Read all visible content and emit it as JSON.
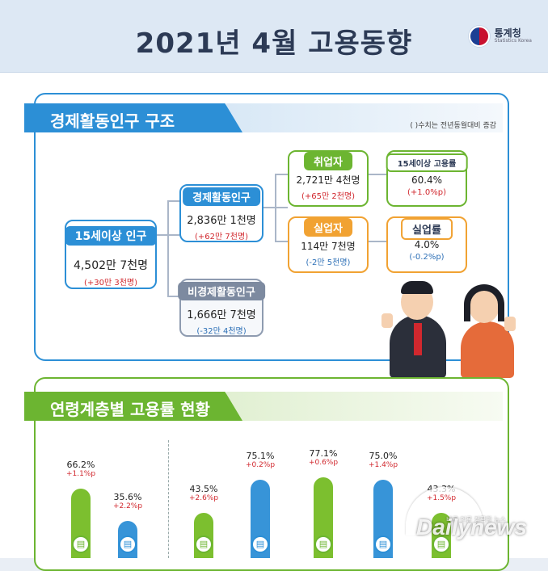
{
  "header": {
    "title": "2021년  4월 고용동향",
    "logo_name": "통계청",
    "logo_sub": "Statistics Korea"
  },
  "section1": {
    "title": "경제활동인구 구조",
    "note": "( )수치는 전년동월대비 증감",
    "pop15": {
      "label": "15세이상 인구",
      "value": "4,502만 7천명",
      "change": "(+30만 3천명)"
    },
    "econ_active": {
      "label": "경제활동인구",
      "value": "2,836만 1천명",
      "change": "(+62만 7천명)"
    },
    "econ_inactive": {
      "label": "비경제활동인구",
      "value": "1,666만 7천명",
      "change": "(-32만 4천명)"
    },
    "employed": {
      "label": "취업자",
      "value": "2,721만 4천명",
      "change": "(+65만 2천명)"
    },
    "employment_rate": {
      "label": "15세이상 고용률",
      "value": "60.4%",
      "change": "(+1.0%p)"
    },
    "unemployed": {
      "label": "실업자",
      "value": "114만 7천명",
      "change": "(-2만 5천명)"
    },
    "unemployment_rate": {
      "label": "실업률",
      "value": "4.0%",
      "change": "(-0.2%p)"
    }
  },
  "section2": {
    "title": "연령계층별 고용률 현황",
    "bars": [
      {
        "value": "66.2%",
        "change": "+1.1%p",
        "rate": 66.2,
        "color": "green"
      },
      {
        "value": "35.6%",
        "change": "+2.2%p",
        "rate": 35.6,
        "color": "blue"
      },
      {
        "value": "43.5%",
        "change": "+2.6%p",
        "rate": 43.5,
        "color": "green"
      },
      {
        "value": "75.1%",
        "change": "+0.2%p",
        "rate": 75.1,
        "color": "blue"
      },
      {
        "value": "77.1%",
        "change": "+0.6%p",
        "rate": 77.1,
        "color": "green"
      },
      {
        "value": "75.0%",
        "change": "+1.4%p",
        "rate": 75.0,
        "color": "blue"
      },
      {
        "value": "43.3%",
        "change": "+1.5%p",
        "rate": 43.3,
        "color": "green"
      }
    ]
  },
  "watermark": {
    "brand": "Dailynews",
    "tagline": "바른 언론 정확한 뉴스"
  },
  "colors": {
    "blue": "#2c8fd6",
    "green": "#6cb531",
    "orange": "#f1a232",
    "gray": "#7d8aa0",
    "positive": "#d1282e",
    "negative": "#2c6fb6"
  }
}
